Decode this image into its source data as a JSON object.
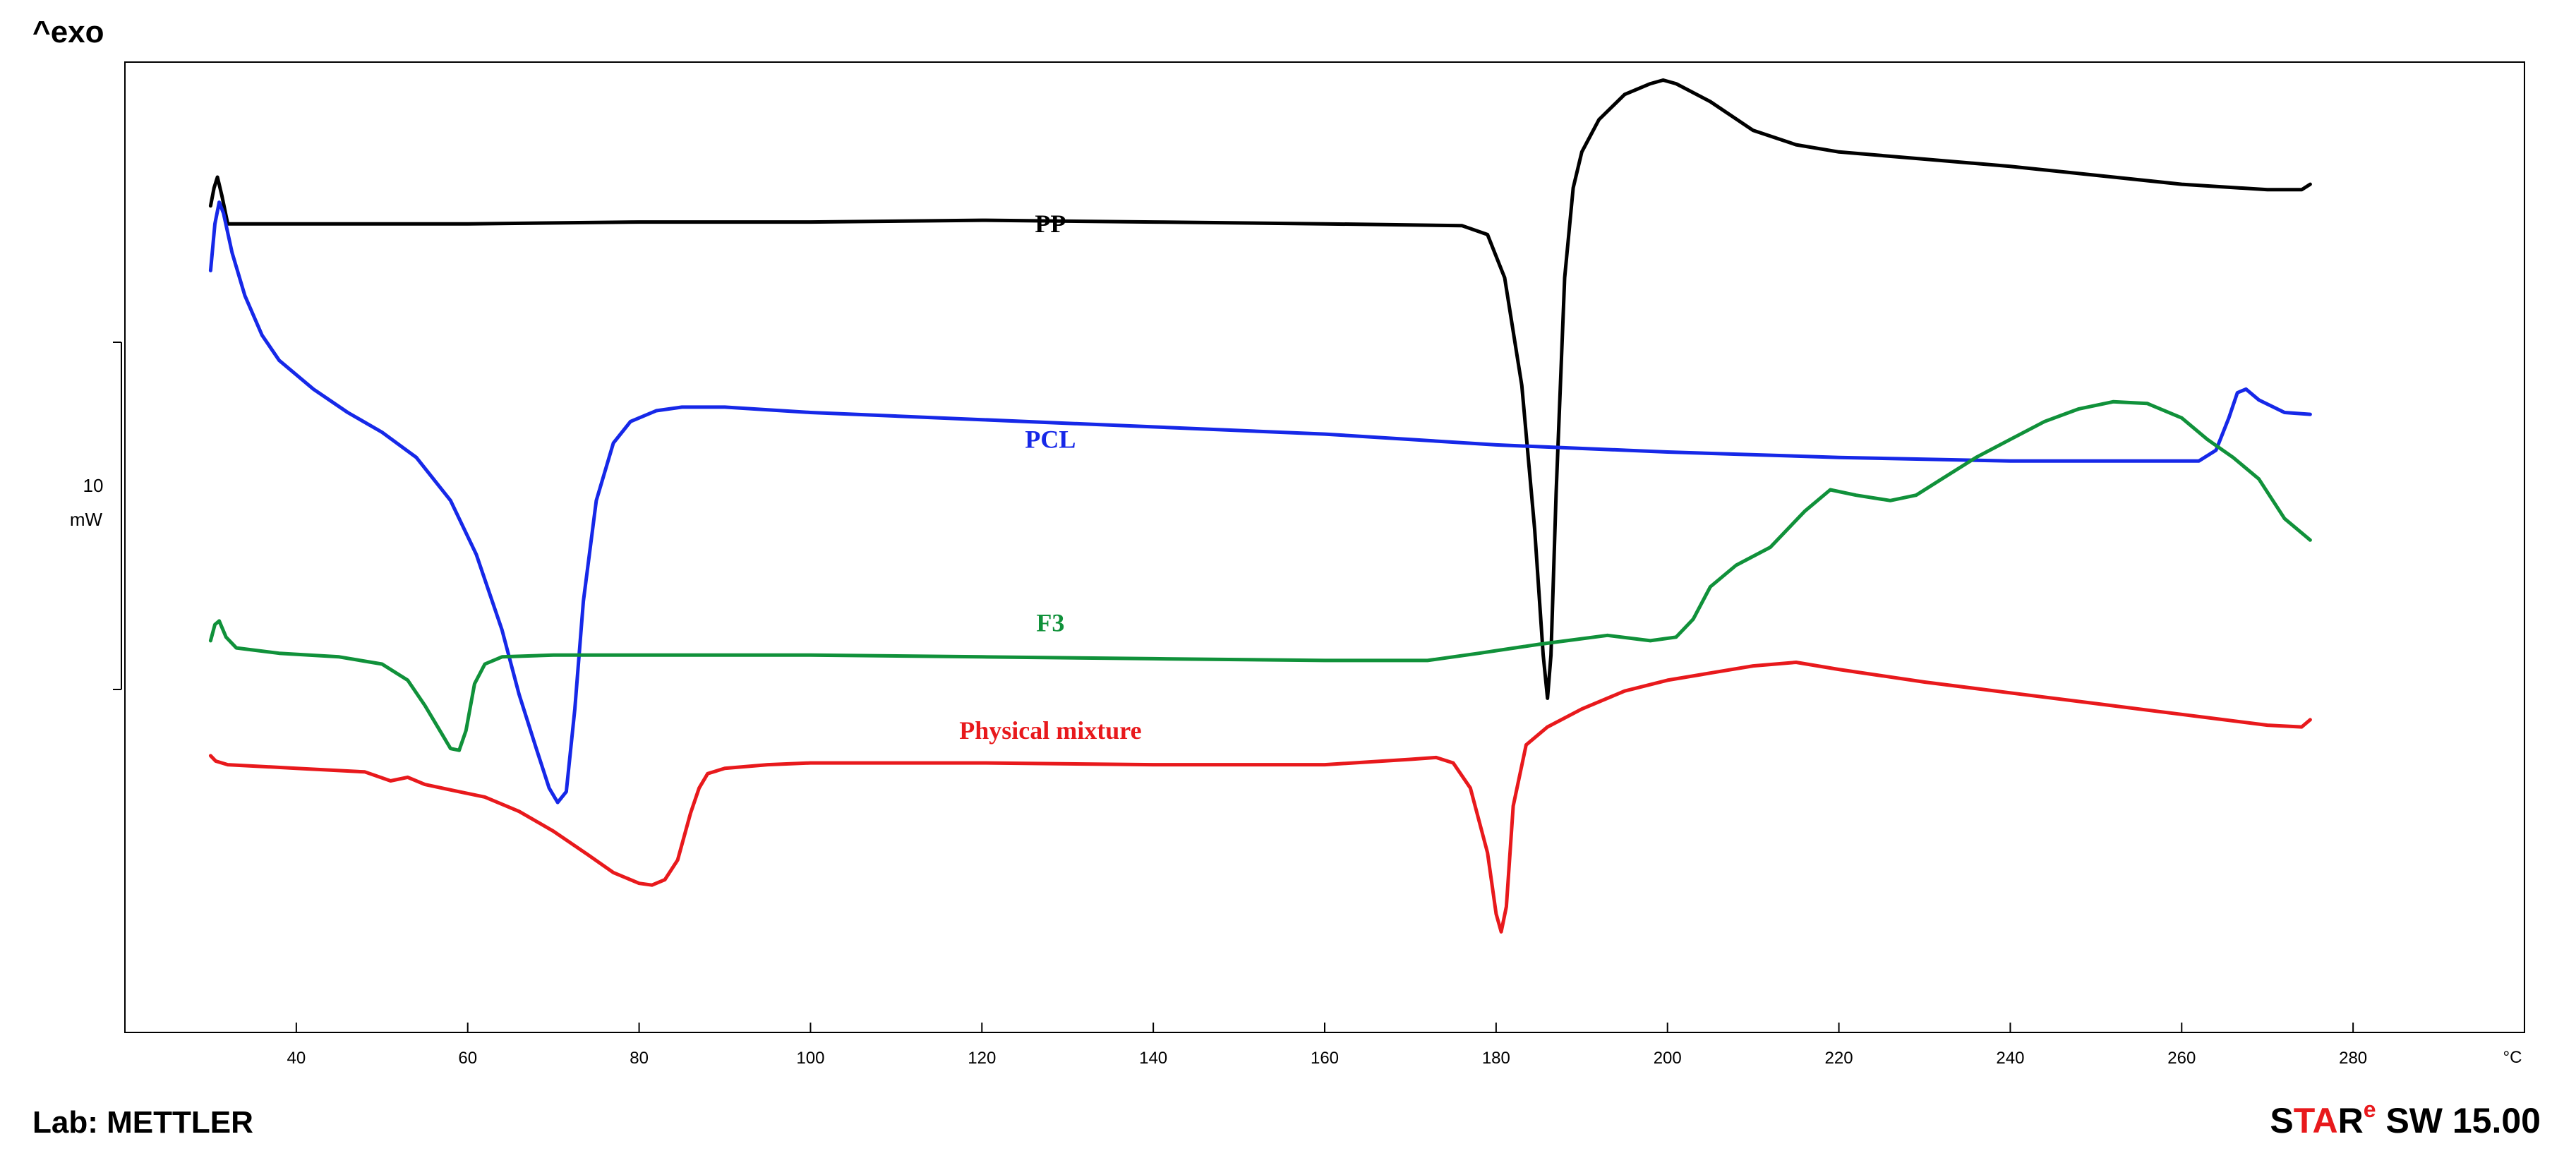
{
  "header": {
    "exo_label": "^exo"
  },
  "footer": {
    "lab": "Lab: METTLER",
    "software": {
      "s": "S",
      "ta": "TA",
      "r": "R",
      "e": "e",
      "rest": " SW 15.00"
    },
    "colors": {
      "black": "#000000",
      "red": "#e8191c"
    }
  },
  "chart_data": {
    "type": "line",
    "x_unit": "°C",
    "xlim": [
      20,
      300
    ],
    "x_ticks": [
      40,
      60,
      80,
      100,
      120,
      140,
      160,
      180,
      200,
      220,
      240,
      260,
      280
    ],
    "ylim": [
      -0.5,
      26.5
    ],
    "grid": false,
    "legend": "inline labels",
    "scale_bar": {
      "value": "10",
      "unit": "mW"
    },
    "series": [
      {
        "name": "PP",
        "color": "#000000",
        "label_pos": [
          128,
          22.0
        ],
        "points": [
          [
            30,
            22.5
          ],
          [
            30.4,
            23.0
          ],
          [
            30.8,
            23.3
          ],
          [
            31.3,
            22.8
          ],
          [
            32,
            22.0
          ],
          [
            40,
            22.0
          ],
          [
            60,
            22.0
          ],
          [
            80,
            22.05
          ],
          [
            100,
            22.05
          ],
          [
            120,
            22.1
          ],
          [
            140,
            22.05
          ],
          [
            160,
            22.0
          ],
          [
            176,
            21.95
          ],
          [
            179,
            21.7
          ],
          [
            181,
            20.5
          ],
          [
            183,
            17.5
          ],
          [
            184.5,
            13.5
          ],
          [
            185.5,
            10.0
          ],
          [
            186,
            8.8
          ],
          [
            186.4,
            10.0
          ],
          [
            187,
            14.5
          ],
          [
            188,
            20.5
          ],
          [
            189,
            23.0
          ],
          [
            190,
            24.0
          ],
          [
            192,
            24.9
          ],
          [
            195,
            25.6
          ],
          [
            198,
            25.9
          ],
          [
            199.5,
            26.0
          ],
          [
            201,
            25.9
          ],
          [
            205,
            25.4
          ],
          [
            210,
            24.6
          ],
          [
            215,
            24.2
          ],
          [
            220,
            24.0
          ],
          [
            230,
            23.8
          ],
          [
            240,
            23.6
          ],
          [
            250,
            23.35
          ],
          [
            260,
            23.1
          ],
          [
            270,
            22.95
          ],
          [
            274,
            22.95
          ],
          [
            275,
            23.1
          ]
        ]
      },
      {
        "name": "PCL",
        "color": "#1628e8",
        "label_pos": [
          128,
          16.0
        ],
        "points": [
          [
            30,
            20.7
          ],
          [
            30.5,
            22.0
          ],
          [
            31,
            22.6
          ],
          [
            31.5,
            22.3
          ],
          [
            32.5,
            21.2
          ],
          [
            34,
            20.0
          ],
          [
            36,
            18.9
          ],
          [
            38,
            18.2
          ],
          [
            42,
            17.4
          ],
          [
            46,
            16.75
          ],
          [
            50,
            16.2
          ],
          [
            54,
            15.5
          ],
          [
            58,
            14.3
          ],
          [
            61,
            12.8
          ],
          [
            64,
            10.7
          ],
          [
            66,
            8.9
          ],
          [
            68,
            7.4
          ],
          [
            69.5,
            6.3
          ],
          [
            70.5,
            5.9
          ],
          [
            71.5,
            6.2
          ],
          [
            72.5,
            8.5
          ],
          [
            73.5,
            11.5
          ],
          [
            75,
            14.3
          ],
          [
            77,
            15.9
          ],
          [
            79,
            16.5
          ],
          [
            82,
            16.8
          ],
          [
            85,
            16.9
          ],
          [
            90,
            16.9
          ],
          [
            100,
            16.75
          ],
          [
            120,
            16.55
          ],
          [
            140,
            16.35
          ],
          [
            160,
            16.15
          ],
          [
            180,
            15.85
          ],
          [
            200,
            15.65
          ],
          [
            220,
            15.5
          ],
          [
            240,
            15.4
          ],
          [
            255,
            15.4
          ],
          [
            262,
            15.4
          ],
          [
            264,
            15.7
          ],
          [
            265.5,
            16.6
          ],
          [
            266.5,
            17.3
          ],
          [
            267.5,
            17.4
          ],
          [
            269,
            17.1
          ],
          [
            272,
            16.75
          ],
          [
            275,
            16.7
          ]
        ]
      },
      {
        "name": "F3",
        "color": "#10913a",
        "label_pos": [
          128,
          10.9
        ],
        "points": [
          [
            30,
            10.4
          ],
          [
            30.5,
            10.85
          ],
          [
            31,
            10.95
          ],
          [
            31.8,
            10.5
          ],
          [
            33,
            10.2
          ],
          [
            38,
            10.05
          ],
          [
            45,
            9.95
          ],
          [
            50,
            9.75
          ],
          [
            53,
            9.3
          ],
          [
            55,
            8.6
          ],
          [
            57,
            7.8
          ],
          [
            58,
            7.4
          ],
          [
            59,
            7.35
          ],
          [
            59.8,
            7.9
          ],
          [
            60.8,
            9.2
          ],
          [
            62,
            9.75
          ],
          [
            64,
            9.95
          ],
          [
            70,
            10.0
          ],
          [
            80,
            10.0
          ],
          [
            100,
            10.0
          ],
          [
            120,
            9.95
          ],
          [
            140,
            9.9
          ],
          [
            160,
            9.85
          ],
          [
            172,
            9.85
          ],
          [
            178,
            10.05
          ],
          [
            185,
            10.3
          ],
          [
            193,
            10.55
          ],
          [
            198,
            10.4
          ],
          [
            201,
            10.5
          ],
          [
            203,
            11.0
          ],
          [
            205,
            11.9
          ],
          [
            208,
            12.5
          ],
          [
            212,
            13.0
          ],
          [
            216,
            14.0
          ],
          [
            219,
            14.6
          ],
          [
            222,
            14.45
          ],
          [
            226,
            14.3
          ],
          [
            229,
            14.45
          ],
          [
            232,
            14.9
          ],
          [
            236,
            15.5
          ],
          [
            240,
            16.0
          ],
          [
            244,
            16.5
          ],
          [
            248,
            16.85
          ],
          [
            252,
            17.05
          ],
          [
            256,
            17.0
          ],
          [
            260,
            16.6
          ],
          [
            263,
            16.0
          ],
          [
            266,
            15.5
          ],
          [
            269,
            14.9
          ],
          [
            272,
            13.8
          ],
          [
            275,
            13.2
          ]
        ]
      },
      {
        "name": "Physical mixture",
        "color": "#e8191c",
        "label_pos": [
          128,
          7.9
        ],
        "points": [
          [
            30,
            7.2
          ],
          [
            30.6,
            7.05
          ],
          [
            32,
            6.95
          ],
          [
            40,
            6.85
          ],
          [
            48,
            6.75
          ],
          [
            51,
            6.5
          ],
          [
            53,
            6.6
          ],
          [
            55,
            6.4
          ],
          [
            58,
            6.25
          ],
          [
            62,
            6.05
          ],
          [
            66,
            5.65
          ],
          [
            70,
            5.1
          ],
          [
            74,
            4.45
          ],
          [
            77,
            3.95
          ],
          [
            80,
            3.65
          ],
          [
            81.5,
            3.6
          ],
          [
            83,
            3.75
          ],
          [
            84.5,
            4.3
          ],
          [
            86,
            5.6
          ],
          [
            87,
            6.3
          ],
          [
            88,
            6.7
          ],
          [
            90,
            6.85
          ],
          [
            95,
            6.95
          ],
          [
            100,
            7.0
          ],
          [
            120,
            7.0
          ],
          [
            140,
            6.95
          ],
          [
            160,
            6.95
          ],
          [
            170,
            7.1
          ],
          [
            173,
            7.15
          ],
          [
            175,
            7.0
          ],
          [
            177,
            6.3
          ],
          [
            179,
            4.5
          ],
          [
            180,
            2.8
          ],
          [
            180.6,
            2.3
          ],
          [
            181.2,
            3.0
          ],
          [
            182,
            5.8
          ],
          [
            183.5,
            7.5
          ],
          [
            186,
            8.0
          ],
          [
            190,
            8.5
          ],
          [
            195,
            9.0
          ],
          [
            200,
            9.3
          ],
          [
            205,
            9.5
          ],
          [
            210,
            9.7
          ],
          [
            215,
            9.8
          ],
          [
            220,
            9.6
          ],
          [
            230,
            9.25
          ],
          [
            240,
            8.95
          ],
          [
            250,
            8.65
          ],
          [
            260,
            8.35
          ],
          [
            270,
            8.05
          ],
          [
            274,
            8.0
          ],
          [
            275,
            8.2
          ]
        ]
      }
    ]
  }
}
